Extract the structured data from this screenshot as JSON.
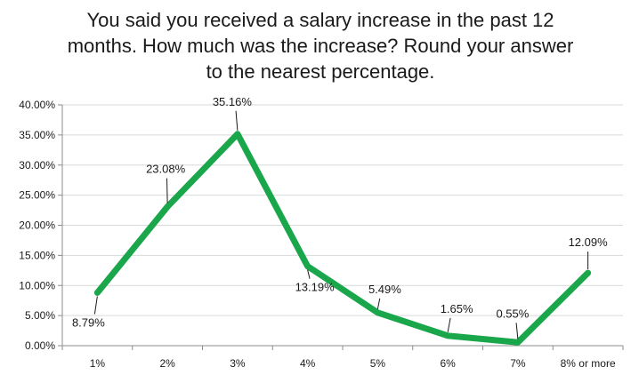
{
  "chart_data": {
    "type": "line",
    "title_lines": [
      "You said you received a salary increase in the past 12",
      "months. How much was the increase? Round your answer",
      "to the nearest percentage."
    ],
    "categories": [
      "1%",
      "2%",
      "3%",
      "4%",
      "5%",
      "6%",
      "7%",
      "8% or more"
    ],
    "series": [
      {
        "values": [
          8.79,
          23.08,
          35.16,
          13.19,
          5.49,
          1.65,
          0.55,
          12.09
        ],
        "labels": [
          "8.79%",
          "23.08%",
          "35.16%",
          "13.19%",
          "5.49%",
          "1.65%",
          "0.55%",
          "12.09%"
        ],
        "color": "#1aa64a"
      }
    ],
    "ylim": [
      0,
      40
    ],
    "yticks": [
      "0.00%",
      "5.00%",
      "10.00%",
      "15.00%",
      "20.00%",
      "25.00%",
      "30.00%",
      "35.00%",
      "40.00%"
    ],
    "grid": true,
    "legend": "none"
  }
}
